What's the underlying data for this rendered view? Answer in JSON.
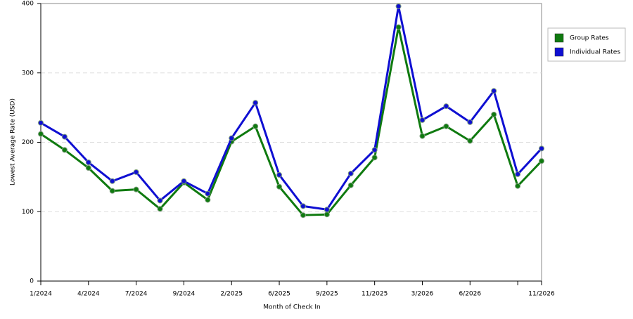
{
  "chart_data": {
    "type": "line",
    "x_label": "Month of Check In",
    "y_label": "Lowest Average Rate (USD)",
    "categories": [
      "1/2024",
      null,
      "4/2024",
      null,
      "7/2024",
      null,
      "9/2024",
      null,
      "2/2025",
      null,
      "6/2025",
      null,
      "9/2025",
      null,
      "11/2025",
      null,
      "3/2026",
      null,
      "6/2026",
      null,
      null,
      "11/2026"
    ],
    "series": [
      {
        "name": "Group Rates",
        "color": "#0f7a0f",
        "values": [
          212,
          189,
          163,
          130,
          132,
          104,
          142,
          117,
          201,
          223,
          136,
          95,
          96,
          138,
          178,
          366,
          209,
          223,
          202,
          240,
          137,
          173
        ]
      },
      {
        "name": "Individual Rates",
        "color": "#0f0fd2",
        "values": [
          228,
          208,
          171,
          144,
          157,
          116,
          144,
          126,
          206,
          257,
          153,
          108,
          103,
          155,
          189,
          396,
          232,
          252,
          229,
          274,
          154,
          191
        ]
      }
    ],
    "ylim": [
      0,
      400
    ],
    "yticks": [
      0,
      100,
      200,
      300,
      400
    ],
    "grid": true,
    "legend": "right"
  }
}
